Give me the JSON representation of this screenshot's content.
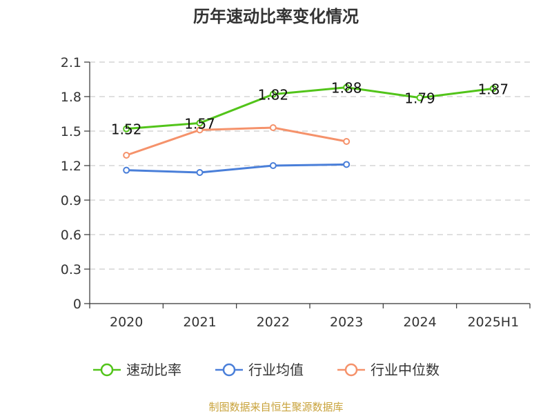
{
  "chart_data": {
    "type": "line",
    "title": "历年速动比率变化情况",
    "categories": [
      "2020",
      "2021",
      "2022",
      "2023",
      "2024",
      "2025H1"
    ],
    "ylim": [
      0,
      2.1
    ],
    "yticks": [
      "0",
      "0.3",
      "0.6",
      "0.9",
      "1.2",
      "1.5",
      "1.8",
      "2.1"
    ],
    "grid": true,
    "legend_position": "bottom",
    "series": [
      {
        "name": "速动比率",
        "color": "#52c41a",
        "values": [
          1.52,
          1.57,
          1.82,
          1.88,
          1.79,
          1.87
        ],
        "labels": [
          "1.52",
          "1.57",
          "1.82",
          "1.88",
          "1.79",
          "1.87"
        ]
      },
      {
        "name": "行业均值",
        "color": "#4a7fd9",
        "values": [
          1.16,
          1.14,
          1.2,
          1.21,
          null,
          null
        ]
      },
      {
        "name": "行业中位数",
        "color": "#f5926b",
        "values": [
          1.29,
          1.51,
          1.53,
          1.41,
          null,
          null
        ]
      }
    ]
  },
  "source": "制图数据来自恒生聚源数据库"
}
